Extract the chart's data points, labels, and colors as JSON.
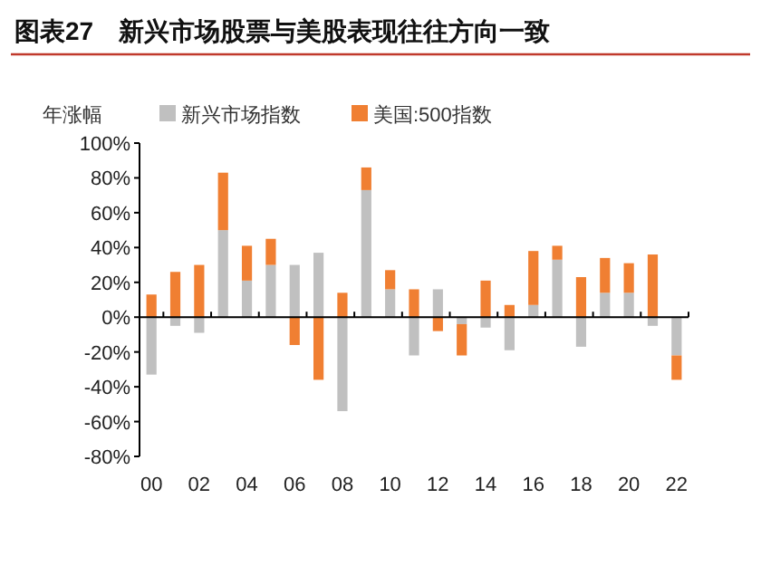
{
  "chart_data": {
    "type": "bar",
    "stacked": true,
    "title": "图表27　新兴市场股票与美股表现往往方向一致",
    "ylabel": "年涨幅",
    "legend": "top",
    "categories": [
      "00",
      null,
      "02",
      null,
      "04",
      null,
      "06",
      null,
      "08",
      null,
      "10",
      null,
      "12",
      null,
      "14",
      null,
      "16",
      null,
      "18",
      null,
      "20",
      null,
      "22"
    ],
    "series": [
      {
        "name": "新兴市场指数",
        "color": "#c0c0c0",
        "values": [
          -33,
          -5,
          -9,
          50,
          21,
          30,
          30,
          37,
          -54,
          73,
          16,
          -22,
          16,
          -4,
          -6,
          -19,
          7,
          33,
          -17,
          14,
          14,
          -5,
          -22
        ]
      },
      {
        "name": "美国:500指数",
        "color": "#f07f32",
        "values": [
          13,
          26,
          30,
          33,
          20,
          15,
          -16,
          -36,
          14,
          13,
          11,
          16,
          -8,
          -18,
          21,
          7,
          31,
          8,
          23,
          20,
          17,
          36,
          -14
        ]
      }
    ],
    "ylim": [
      -80,
      100
    ],
    "yticks": [
      {
        "value": -80,
        "label": "-80%"
      },
      {
        "value": -60,
        "label": "-60%"
      },
      {
        "value": -40,
        "label": "-40%"
      },
      {
        "value": -20,
        "label": "-20%"
      },
      {
        "value": 0,
        "label": "0%"
      },
      {
        "value": 20,
        "label": "20%"
      },
      {
        "value": 40,
        "label": "40%"
      },
      {
        "value": 60,
        "label": "60%"
      },
      {
        "value": 80,
        "label": "80%"
      },
      {
        "value": 100,
        "label": "100%"
      }
    ]
  }
}
